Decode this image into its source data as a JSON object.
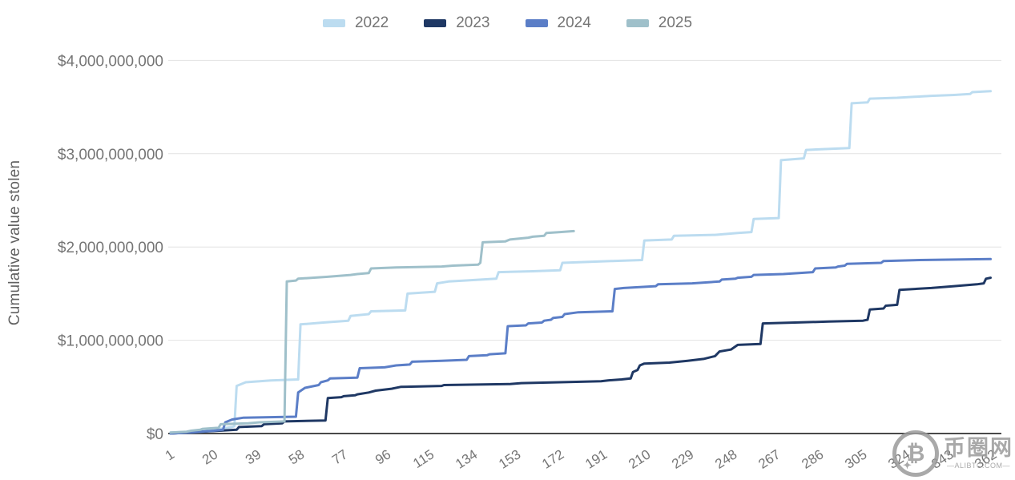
{
  "page": {
    "background": "#ffffff"
  },
  "y_axis": {
    "title": "Cumulative value stolen"
  },
  "legend": {
    "position": "top-center",
    "items": [
      {
        "label": "2022",
        "color": "#bcdcf0"
      },
      {
        "label": "2023",
        "color": "#1f3864"
      },
      {
        "label": "2024",
        "color": "#5b7ec7"
      },
      {
        "label": "2025",
        "color": "#9fc0ca"
      }
    ]
  },
  "watermark": {
    "symbol": "₿",
    "star": "✦",
    "site_name": "币圈网",
    "domain": "—ALIBTC.COM—"
  },
  "chart_data": {
    "type": "line",
    "title": "",
    "xlabel": "",
    "ylabel": "Cumulative value stolen",
    "x_unit": "day of year",
    "value_unit": "USD billions",
    "xlim": [
      1,
      366
    ],
    "ylim": [
      0,
      4000000000
    ],
    "grid": true,
    "line_style": "step",
    "colors": {
      "grid": "#e2e2e2",
      "zero_axis": "#4a4a4a",
      "tick_text": "#757575"
    },
    "yticks": [
      {
        "value": 0,
        "label": "$0"
      },
      {
        "value": 1,
        "label": "$1,000,000,000"
      },
      {
        "value": 2,
        "label": "$2,000,000,000"
      },
      {
        "value": 3,
        "label": "$3,000,000,000"
      },
      {
        "value": 4,
        "label": "$4,000,000,000"
      }
    ],
    "xticks": [
      1,
      20,
      39,
      58,
      77,
      96,
      115,
      134,
      153,
      172,
      191,
      210,
      229,
      248,
      267,
      286,
      305,
      324,
      343,
      362
    ],
    "series": [
      {
        "name": "2022",
        "color": "#bcdcf0",
        "points": [
          [
            1,
            0.01
          ],
          [
            10,
            0.02
          ],
          [
            20,
            0.04
          ],
          [
            28,
            0.07
          ],
          [
            29,
            0.08
          ],
          [
            30,
            0.51
          ],
          [
            34,
            0.55
          ],
          [
            45,
            0.57
          ],
          [
            57,
            0.58
          ],
          [
            58,
            1.17
          ],
          [
            68,
            1.19
          ],
          [
            79,
            1.21
          ],
          [
            80,
            1.26
          ],
          [
            88,
            1.28
          ],
          [
            89,
            1.31
          ],
          [
            104,
            1.32
          ],
          [
            105,
            1.5
          ],
          [
            117,
            1.52
          ],
          [
            118,
            1.61
          ],
          [
            123,
            1.63
          ],
          [
            130,
            1.64
          ],
          [
            144,
            1.66
          ],
          [
            145,
            1.73
          ],
          [
            160,
            1.74
          ],
          [
            172,
            1.75
          ],
          [
            173,
            1.83
          ],
          [
            195,
            1.85
          ],
          [
            208,
            1.86
          ],
          [
            209,
            2.07
          ],
          [
            221,
            2.08
          ],
          [
            222,
            2.12
          ],
          [
            240,
            2.13
          ],
          [
            250,
            2.15
          ],
          [
            256,
            2.16
          ],
          [
            257,
            2.3
          ],
          [
            268,
            2.31
          ],
          [
            269,
            2.93
          ],
          [
            279,
            2.95
          ],
          [
            280,
            3.04
          ],
          [
            299,
            3.06
          ],
          [
            300,
            3.54
          ],
          [
            307,
            3.55
          ],
          [
            308,
            3.59
          ],
          [
            320,
            3.6
          ],
          [
            335,
            3.62
          ],
          [
            345,
            3.63
          ],
          [
            352,
            3.64
          ],
          [
            353,
            3.66
          ],
          [
            361,
            3.67
          ]
        ]
      },
      {
        "name": "2023",
        "color": "#1f3864",
        "points": [
          [
            1,
            0.0
          ],
          [
            15,
            0.02
          ],
          [
            30,
            0.04
          ],
          [
            31,
            0.07
          ],
          [
            41,
            0.08
          ],
          [
            42,
            0.1
          ],
          [
            50,
            0.11
          ],
          [
            51,
            0.13
          ],
          [
            69,
            0.14
          ],
          [
            70,
            0.38
          ],
          [
            76,
            0.39
          ],
          [
            77,
            0.4
          ],
          [
            82,
            0.41
          ],
          [
            83,
            0.42
          ],
          [
            88,
            0.44
          ],
          [
            91,
            0.46
          ],
          [
            98,
            0.48
          ],
          [
            102,
            0.5
          ],
          [
            120,
            0.51
          ],
          [
            121,
            0.52
          ],
          [
            150,
            0.53
          ],
          [
            155,
            0.54
          ],
          [
            172,
            0.55
          ],
          [
            190,
            0.56
          ],
          [
            193,
            0.57
          ],
          [
            199,
            0.58
          ],
          [
            203,
            0.59
          ],
          [
            204,
            0.66
          ],
          [
            206,
            0.68
          ],
          [
            207,
            0.73
          ],
          [
            209,
            0.75
          ],
          [
            220,
            0.76
          ],
          [
            228,
            0.78
          ],
          [
            235,
            0.8
          ],
          [
            240,
            0.83
          ],
          [
            242,
            0.88
          ],
          [
            247,
            0.9
          ],
          [
            250,
            0.95
          ],
          [
            260,
            0.96
          ],
          [
            261,
            1.18
          ],
          [
            275,
            1.19
          ],
          [
            290,
            1.2
          ],
          [
            305,
            1.21
          ],
          [
            307,
            1.22
          ],
          [
            308,
            1.33
          ],
          [
            314,
            1.34
          ],
          [
            315,
            1.37
          ],
          [
            320,
            1.38
          ],
          [
            321,
            1.54
          ],
          [
            335,
            1.56
          ],
          [
            345,
            1.58
          ],
          [
            355,
            1.6
          ],
          [
            358,
            1.61
          ],
          [
            359,
            1.66
          ],
          [
            361,
            1.67
          ]
        ]
      },
      {
        "name": "2024",
        "color": "#5b7ec7",
        "points": [
          [
            1,
            0.0
          ],
          [
            10,
            0.01
          ],
          [
            20,
            0.03
          ],
          [
            24,
            0.04
          ],
          [
            25,
            0.12
          ],
          [
            28,
            0.15
          ],
          [
            33,
            0.17
          ],
          [
            56,
            0.18
          ],
          [
            57,
            0.44
          ],
          [
            60,
            0.49
          ],
          [
            66,
            0.52
          ],
          [
            67,
            0.55
          ],
          [
            70,
            0.57
          ],
          [
            71,
            0.59
          ],
          [
            83,
            0.6
          ],
          [
            84,
            0.7
          ],
          [
            95,
            0.71
          ],
          [
            100,
            0.73
          ],
          [
            106,
            0.74
          ],
          [
            107,
            0.77
          ],
          [
            120,
            0.78
          ],
          [
            131,
            0.79
          ],
          [
            132,
            0.83
          ],
          [
            140,
            0.84
          ],
          [
            141,
            0.85
          ],
          [
            148,
            0.86
          ],
          [
            149,
            1.15
          ],
          [
            157,
            1.16
          ],
          [
            158,
            1.18
          ],
          [
            164,
            1.19
          ],
          [
            165,
            1.21
          ],
          [
            168,
            1.22
          ],
          [
            169,
            1.24
          ],
          [
            173,
            1.25
          ],
          [
            174,
            1.28
          ],
          [
            180,
            1.3
          ],
          [
            195,
            1.31
          ],
          [
            196,
            1.55
          ],
          [
            200,
            1.56
          ],
          [
            214,
            1.58
          ],
          [
            215,
            1.6
          ],
          [
            230,
            1.61
          ],
          [
            242,
            1.63
          ],
          [
            243,
            1.65
          ],
          [
            249,
            1.66
          ],
          [
            250,
            1.67
          ],
          [
            256,
            1.68
          ],
          [
            257,
            1.7
          ],
          [
            270,
            1.71
          ],
          [
            283,
            1.73
          ],
          [
            284,
            1.77
          ],
          [
            293,
            1.78
          ],
          [
            294,
            1.79
          ],
          [
            297,
            1.8
          ],
          [
            298,
            1.82
          ],
          [
            313,
            1.83
          ],
          [
            314,
            1.85
          ],
          [
            330,
            1.86
          ],
          [
            361,
            1.87
          ]
        ]
      },
      {
        "name": "2025",
        "color": "#9fc0ca",
        "points": [
          [
            1,
            0.01
          ],
          [
            8,
            0.02
          ],
          [
            10,
            0.03
          ],
          [
            14,
            0.04
          ],
          [
            15,
            0.05
          ],
          [
            21,
            0.06
          ],
          [
            22,
            0.06
          ],
          [
            23,
            0.1
          ],
          [
            35,
            0.11
          ],
          [
            40,
            0.12
          ],
          [
            51,
            0.13
          ],
          [
            52,
            1.63
          ],
          [
            56,
            1.64
          ],
          [
            57,
            1.66
          ],
          [
            70,
            1.68
          ],
          [
            80,
            1.7
          ],
          [
            83,
            1.71
          ],
          [
            88,
            1.72
          ],
          [
            89,
            1.77
          ],
          [
            100,
            1.78
          ],
          [
            120,
            1.79
          ],
          [
            125,
            1.8
          ],
          [
            136,
            1.81
          ],
          [
            137,
            1.83
          ],
          [
            138,
            2.05
          ],
          [
            148,
            2.06
          ],
          [
            150,
            2.08
          ],
          [
            158,
            2.1
          ],
          [
            160,
            2.11
          ],
          [
            165,
            2.12
          ],
          [
            166,
            2.15
          ],
          [
            172,
            2.16
          ],
          [
            178,
            2.17
          ]
        ]
      }
    ]
  }
}
